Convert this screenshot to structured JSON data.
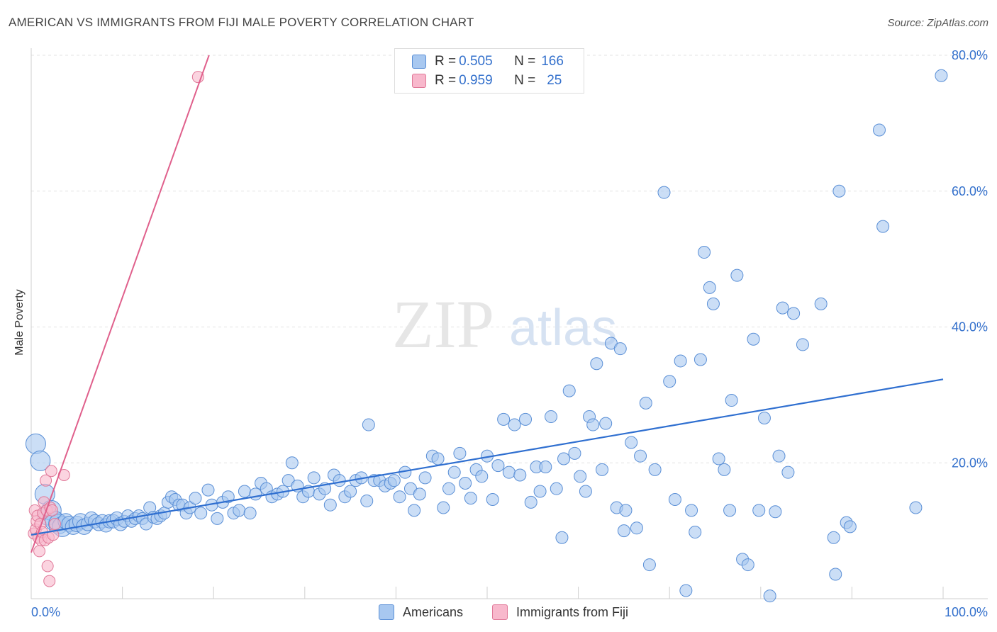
{
  "header": {
    "title": "AMERICAN VS IMMIGRANTS FROM FIJI MALE POVERTY CORRELATION CHART",
    "source": "Source: ZipAtlas.com"
  },
  "watermark": {
    "zip": "ZIP",
    "atlas": "atlas"
  },
  "legend_top": {
    "rows": [
      {
        "r_label": "R = ",
        "r_value": "0.505",
        "n_label": "N = ",
        "n_value": "166",
        "color": "#a8c8f0"
      },
      {
        "r_label": "R = ",
        "r_value": "0.959",
        "n_label": "N = ",
        "n_value": "25",
        "color": "#f8b8cc"
      }
    ]
  },
  "legend_bottom": {
    "americans": "Americans",
    "fiji": "Immigrants from Fiji"
  },
  "chart_data": {
    "type": "scatter",
    "title": "AMERICAN VS IMMIGRANTS FROM FIJI MALE POVERTY CORRELATION CHART",
    "xlabel": "",
    "ylabel": "Male Poverty",
    "xlim": [
      0,
      100
    ],
    "ylim": [
      0,
      80
    ],
    "x_tick_labels": [
      "0.0%",
      "100.0%"
    ],
    "y_tick_labels": [
      {
        "value": 20,
        "label": "20.0%"
      },
      {
        "value": 40,
        "label": "40.0%"
      },
      {
        "value": 60,
        "label": "60.0%"
      },
      {
        "value": 80,
        "label": "80.0%"
      }
    ],
    "grid": true,
    "legend_position": "top-center",
    "colors": {
      "americans_fill": "#a8c8f0",
      "americans_stroke": "#5a8fd6",
      "americans_line": "#2f6fd0",
      "fiji_fill": "#f8b8cc",
      "fiji_stroke": "#e07898",
      "fiji_line": "#e0608c",
      "axis_text": "#3370cc"
    },
    "series": [
      {
        "name": "Americans",
        "trend": [
          [
            0,
            9.4
          ],
          [
            100,
            32.3
          ]
        ],
        "points": [
          [
            0.5,
            22.8
          ],
          [
            1.0,
            20.3
          ],
          [
            1.5,
            15.4
          ],
          [
            1.8,
            12.3
          ],
          [
            2.2,
            13.0
          ],
          [
            2.6,
            11.4
          ],
          [
            3.0,
            11.0
          ],
          [
            3.4,
            10.6
          ],
          [
            3.8,
            11.4
          ],
          [
            4.2,
            11.0
          ],
          [
            4.6,
            10.6
          ],
          [
            5.0,
            11.0
          ],
          [
            5.4,
            11.4
          ],
          [
            5.8,
            10.6
          ],
          [
            6.2,
            11.0
          ],
          [
            6.6,
            11.8
          ],
          [
            7.0,
            11.4
          ],
          [
            7.4,
            11.0
          ],
          [
            7.8,
            11.4
          ],
          [
            8.2,
            10.8
          ],
          [
            8.6,
            11.4
          ],
          [
            9.0,
            11.4
          ],
          [
            9.4,
            11.8
          ],
          [
            9.8,
            11.0
          ],
          [
            10.2,
            11.4
          ],
          [
            10.6,
            12.2
          ],
          [
            11.0,
            11.4
          ],
          [
            11.4,
            11.8
          ],
          [
            11.8,
            12.2
          ],
          [
            12.2,
            11.8
          ],
          [
            12.6,
            11.0
          ],
          [
            13.0,
            13.4
          ],
          [
            13.4,
            12.0
          ],
          [
            13.8,
            11.8
          ],
          [
            14.2,
            12.2
          ],
          [
            14.6,
            12.6
          ],
          [
            15.0,
            14.2
          ],
          [
            15.4,
            15.0
          ],
          [
            15.8,
            14.6
          ],
          [
            16.2,
            13.8
          ],
          [
            16.6,
            13.8
          ],
          [
            17.0,
            12.6
          ],
          [
            17.4,
            13.4
          ],
          [
            18.0,
            14.8
          ],
          [
            18.6,
            12.6
          ],
          [
            19.4,
            16.0
          ],
          [
            19.8,
            13.8
          ],
          [
            20.4,
            11.8
          ],
          [
            21.0,
            14.2
          ],
          [
            21.6,
            15.0
          ],
          [
            22.2,
            12.6
          ],
          [
            22.8,
            13.0
          ],
          [
            23.4,
            15.8
          ],
          [
            24.0,
            12.6
          ],
          [
            24.6,
            15.4
          ],
          [
            25.2,
            17.0
          ],
          [
            25.8,
            16.2
          ],
          [
            26.4,
            15.0
          ],
          [
            27.0,
            15.4
          ],
          [
            27.6,
            15.8
          ],
          [
            28.2,
            17.4
          ],
          [
            28.6,
            20.0
          ],
          [
            29.2,
            16.6
          ],
          [
            29.8,
            15.0
          ],
          [
            30.4,
            15.8
          ],
          [
            31.0,
            17.8
          ],
          [
            31.6,
            15.4
          ],
          [
            32.2,
            16.2
          ],
          [
            32.8,
            13.8
          ],
          [
            33.2,
            18.2
          ],
          [
            33.8,
            17.4
          ],
          [
            34.4,
            15.0
          ],
          [
            35.0,
            15.8
          ],
          [
            35.6,
            17.4
          ],
          [
            36.2,
            17.8
          ],
          [
            36.8,
            14.4
          ],
          [
            37.0,
            25.6
          ],
          [
            37.6,
            17.4
          ],
          [
            38.2,
            17.4
          ],
          [
            38.8,
            16.6
          ],
          [
            39.4,
            17.0
          ],
          [
            39.8,
            17.4
          ],
          [
            40.4,
            15.0
          ],
          [
            41.0,
            18.6
          ],
          [
            41.6,
            16.2
          ],
          [
            42.0,
            13.0
          ],
          [
            42.6,
            15.4
          ],
          [
            43.2,
            17.8
          ],
          [
            44.0,
            21.0
          ],
          [
            44.6,
            20.6
          ],
          [
            45.2,
            13.4
          ],
          [
            45.8,
            16.2
          ],
          [
            46.4,
            18.6
          ],
          [
            47.0,
            21.4
          ],
          [
            47.6,
            17.0
          ],
          [
            48.2,
            14.8
          ],
          [
            48.8,
            19.0
          ],
          [
            49.4,
            18.0
          ],
          [
            50.0,
            21.0
          ],
          [
            50.6,
            14.6
          ],
          [
            51.2,
            19.6
          ],
          [
            51.8,
            26.4
          ],
          [
            52.4,
            18.6
          ],
          [
            53.0,
            25.6
          ],
          [
            53.6,
            18.2
          ],
          [
            54.2,
            26.4
          ],
          [
            54.8,
            14.2
          ],
          [
            55.4,
            19.4
          ],
          [
            55.8,
            15.8
          ],
          [
            56.4,
            19.4
          ],
          [
            57.0,
            26.8
          ],
          [
            57.6,
            16.2
          ],
          [
            58.2,
            9.0
          ],
          [
            58.4,
            20.6
          ],
          [
            59.0,
            30.6
          ],
          [
            59.6,
            21.4
          ],
          [
            60.2,
            18.0
          ],
          [
            60.8,
            15.8
          ],
          [
            61.2,
            26.8
          ],
          [
            61.6,
            25.6
          ],
          [
            62.0,
            34.6
          ],
          [
            62.6,
            19.0
          ],
          [
            63.0,
            25.8
          ],
          [
            63.6,
            37.6
          ],
          [
            64.2,
            13.4
          ],
          [
            64.6,
            36.8
          ],
          [
            65.2,
            13.0
          ],
          [
            65.8,
            23.0
          ],
          [
            66.4,
            10.4
          ],
          [
            66.8,
            21.0
          ],
          [
            67.4,
            28.8
          ],
          [
            67.8,
            5.0
          ],
          [
            68.4,
            19.0
          ],
          [
            65.0,
            10.0
          ],
          [
            69.4,
            59.8
          ],
          [
            70.0,
            32.0
          ],
          [
            70.6,
            14.6
          ],
          [
            71.2,
            35.0
          ],
          [
            71.8,
            1.2
          ],
          [
            72.4,
            13.0
          ],
          [
            72.8,
            9.8
          ],
          [
            73.4,
            35.2
          ],
          [
            73.8,
            51.0
          ],
          [
            74.4,
            45.8
          ],
          [
            74.8,
            43.4
          ],
          [
            75.4,
            20.6
          ],
          [
            76.0,
            19.0
          ],
          [
            76.6,
            13.0
          ],
          [
            76.8,
            29.2
          ],
          [
            77.4,
            47.6
          ],
          [
            78.0,
            5.8
          ],
          [
            78.6,
            5.0
          ],
          [
            79.2,
            38.2
          ],
          [
            79.8,
            13.0
          ],
          [
            80.4,
            26.6
          ],
          [
            81.0,
            0.4
          ],
          [
            81.6,
            12.8
          ],
          [
            82.0,
            21.0
          ],
          [
            82.4,
            42.8
          ],
          [
            83.0,
            18.6
          ],
          [
            83.6,
            42.0
          ],
          [
            84.6,
            37.4
          ],
          [
            86.6,
            43.4
          ],
          [
            88.0,
            9.0
          ],
          [
            88.2,
            3.6
          ],
          [
            88.6,
            60.0
          ],
          [
            89.4,
            11.2
          ],
          [
            89.8,
            10.6
          ],
          [
            93.0,
            69.0
          ],
          [
            93.4,
            54.8
          ],
          [
            97.0,
            13.4
          ],
          [
            99.8,
            77.0
          ]
        ]
      },
      {
        "name": "Immigrants from Fiji",
        "trend": [
          [
            0,
            6.8
          ],
          [
            19.5,
            80.0
          ]
        ],
        "points": [
          [
            0.3,
            9.6
          ],
          [
            0.4,
            13.0
          ],
          [
            0.5,
            10.2
          ],
          [
            0.6,
            11.4
          ],
          [
            0.7,
            12.2
          ],
          [
            0.8,
            9.0
          ],
          [
            0.9,
            7.0
          ],
          [
            1.0,
            11.0
          ],
          [
            1.1,
            8.6
          ],
          [
            1.2,
            9.8
          ],
          [
            1.3,
            12.6
          ],
          [
            1.4,
            14.2
          ],
          [
            1.5,
            8.6
          ],
          [
            1.6,
            17.4
          ],
          [
            1.7,
            13.0
          ],
          [
            1.8,
            4.8
          ],
          [
            1.9,
            9.0
          ],
          [
            2.0,
            2.6
          ],
          [
            2.1,
            13.4
          ],
          [
            2.2,
            18.8
          ],
          [
            2.3,
            13.0
          ],
          [
            2.4,
            9.4
          ],
          [
            3.6,
            18.2
          ],
          [
            2.6,
            11.0
          ],
          [
            18.3,
            76.8
          ]
        ]
      }
    ]
  }
}
